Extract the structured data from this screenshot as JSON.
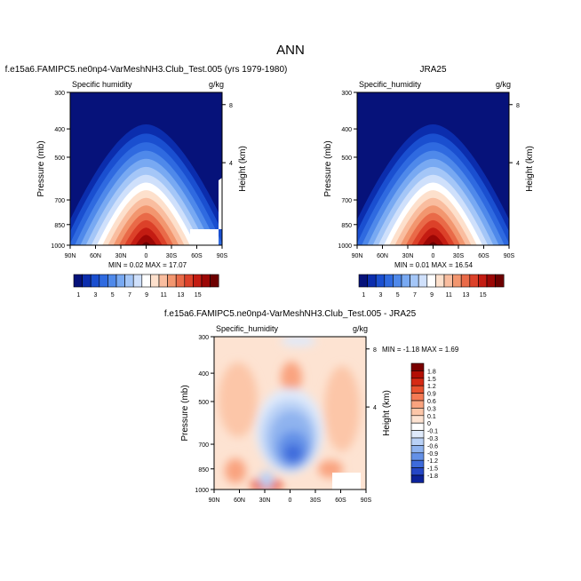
{
  "main_title": "ANN",
  "chart_data": [
    {
      "type": "heatmap",
      "title": "f.e15a6.FAMIPC5.ne0np4-VarMeshNH3.Club_Test.005 (yrs 1979-1980)",
      "subtitle_left": "Specific humidity",
      "units": "g/kg",
      "ylabel": "Pressure (mb)",
      "ylabel_right": "Height (km)",
      "xticks": [
        "90N",
        "60N",
        "30N",
        "0",
        "30S",
        "60S",
        "90S"
      ],
      "yticks": [
        "300",
        "400",
        "500",
        "700",
        "850",
        "1000"
      ],
      "yticks_right": [
        "8",
        "4"
      ],
      "stats": "MIN =  0.02  MAX = 17.07",
      "field": {
        "peak": 17.07,
        "center_lat": 0
      }
    },
    {
      "type": "heatmap",
      "title": "JRA25",
      "subtitle_left": "Specific_humidity",
      "units": "g/kg",
      "ylabel": "Pressure (mb)",
      "ylabel_right": "Height (km)",
      "xticks": [
        "90N",
        "60N",
        "30N",
        "0",
        "30S",
        "60S",
        "90S"
      ],
      "yticks": [
        "300",
        "400",
        "500",
        "700",
        "850",
        "1000"
      ],
      "yticks_right": [
        "8",
        "4"
      ],
      "stats": "MIN =  0.01  MAX = 16.54",
      "field": {
        "peak": 16.54,
        "center_lat": 0
      }
    },
    {
      "type": "heatmap",
      "title": "f.e15a6.FAMIPC5.ne0np4-VarMeshNH3.Club_Test.005 - JRA25",
      "subtitle_left": "Specific_humidity",
      "units": "g/kg",
      "ylabel": "Pressure (mb)",
      "ylabel_right": "Height (km)",
      "xticks": [
        "90N",
        "60N",
        "30N",
        "0",
        "30S",
        "60S",
        "90S"
      ],
      "yticks": [
        "300",
        "400",
        "500",
        "700",
        "850",
        "1000"
      ],
      "yticks_right": [
        "8",
        "4"
      ],
      "stats": "MIN = -1.18  MAX =  1.69"
    }
  ],
  "colorbar_top": {
    "labels": [
      "1",
      "3",
      "5",
      "7",
      "9",
      "11",
      "13",
      "15"
    ],
    "colors": [
      "#06127a",
      "#0b2dad",
      "#1a4fd0",
      "#2f6ae0",
      "#4f89ea",
      "#78a9f2",
      "#a4c6f7",
      "#cfe0fb",
      "#ffffff",
      "#fde0cc",
      "#f9bd9f",
      "#f2966f",
      "#e96a48",
      "#dc4129",
      "#c41c12",
      "#9c0705",
      "#6d0000"
    ]
  },
  "colorbar_diff": {
    "labels": [
      "1.8",
      "1.5",
      "1.2",
      "0.9",
      "0.6",
      "0.3",
      "0.1",
      "0",
      "-0.1",
      "-0.3",
      "-0.6",
      "-0.9",
      "-1.2",
      "-1.5",
      "-1.8"
    ],
    "colors": [
      "#7a0000",
      "#b30f05",
      "#d52a14",
      "#e9522f",
      "#f57b55",
      "#f9a37f",
      "#fcc6a8",
      "#fde3d2",
      "#ffffff",
      "#dfeafb",
      "#b9d1f6",
      "#8fb3ef",
      "#6491e7",
      "#3e6bdb",
      "#2547c6",
      "#0c2299"
    ]
  }
}
